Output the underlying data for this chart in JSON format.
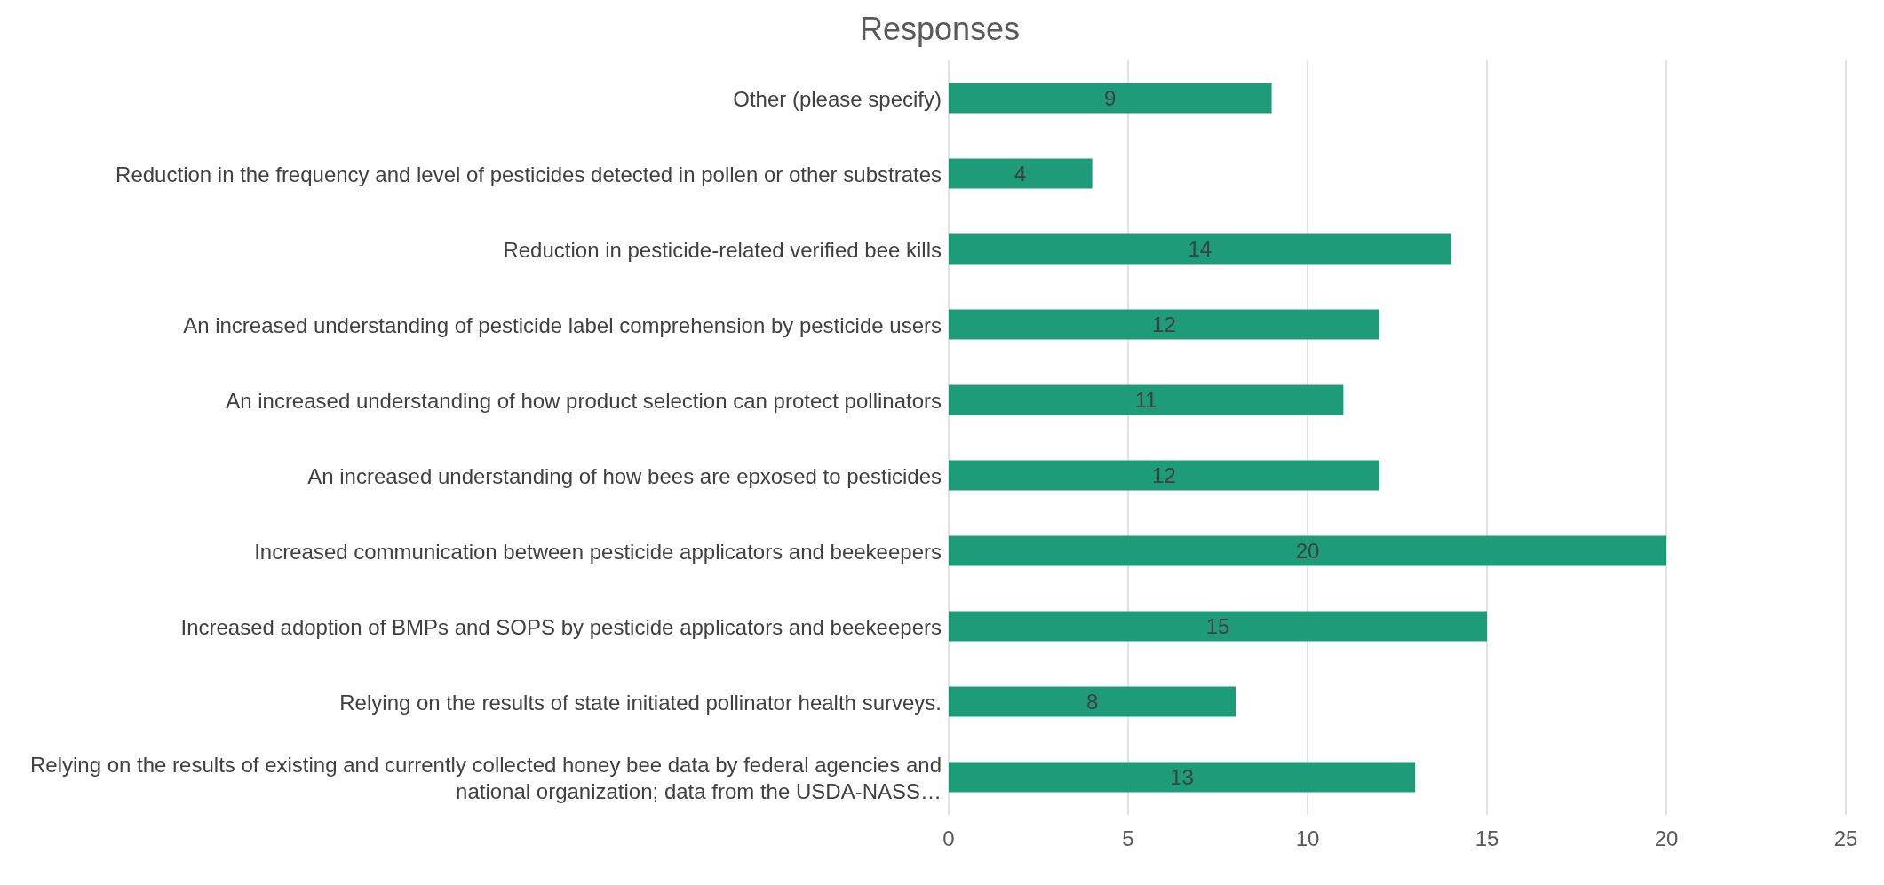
{
  "chart_data": {
    "type": "bar",
    "orientation": "horizontal",
    "title": "Responses",
    "categories": [
      "Other (please specify)",
      "Reduction in the frequency and level of pesticides detected in pollen or other substrates",
      "Reduction in pesticide-related verified bee kills",
      "An increased understanding of pesticide label comprehension by pesticide users",
      "An increased understanding of how product selection can protect pollinators",
      "An increased understanding of how bees are epxosed to pesticides",
      "Increased communication between pesticide applicators and beekeepers",
      "Increased adoption of BMPs and SOPS by pesticide applicators and beekeepers",
      "Relying on the results of state initiated pollinator health surveys.",
      "Relying on the results of existing and currently collected honey bee data by federal agencies and national organization; data from the USDA-NASS…"
    ],
    "values": [
      9,
      4,
      14,
      12,
      11,
      12,
      20,
      15,
      8,
      13
    ],
    "color": "#1e9c7a",
    "xlim": [
      0,
      25
    ],
    "xticks": [
      0,
      5,
      10,
      15,
      20,
      25
    ],
    "grid": "x",
    "data_labels": true
  }
}
